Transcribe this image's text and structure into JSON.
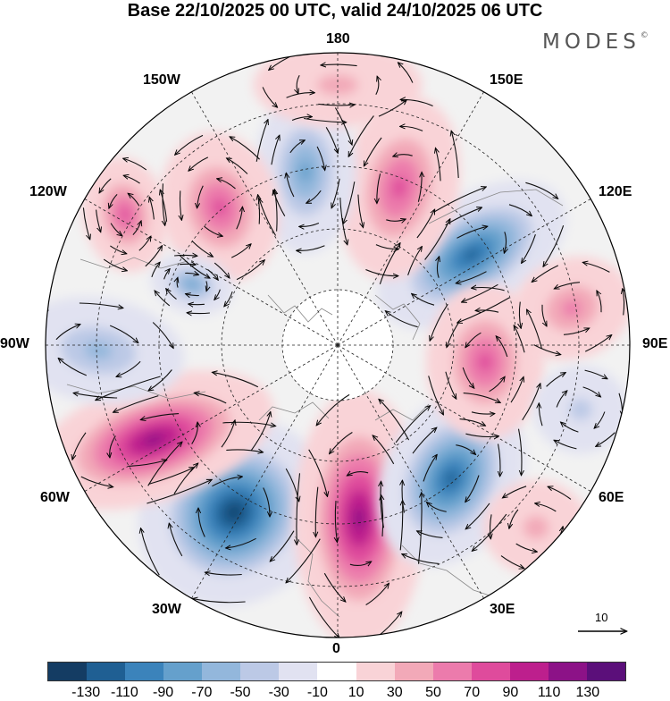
{
  "title": "Base 22/10/2025 00 UTC, valid 24/10/2025 06 UTC",
  "brand": "MODES",
  "brand_mark": "©",
  "longitude_labels": {
    "lon_180": "180",
    "lon_150e": "150E",
    "lon_120e": "120E",
    "lon_90e": "90E",
    "lon_60e": "60E",
    "lon_30e": "30E",
    "lon_0": "0",
    "lon_30w": "30W",
    "lon_60w": "60W",
    "lon_90w": "90W",
    "lon_120w": "120W",
    "lon_150w": "150W"
  },
  "vector_scale": {
    "label": "10"
  },
  "colorbar": {
    "labels": [
      "-130",
      "-110",
      "-90",
      "-70",
      "-50",
      "-30",
      "-10",
      "10",
      "30",
      "50",
      "70",
      "90",
      "110",
      "130"
    ],
    "colors": [
      "#143c63",
      "#1f5f93",
      "#3b83bb",
      "#65a0cc",
      "#93b7dc",
      "#bcc9e6",
      "#e1e2f1",
      "#ffffff",
      "#f9d3d7",
      "#f2a9b8",
      "#ec7bac",
      "#df4b9c",
      "#bd1f8d",
      "#8c1287",
      "#5b0f7a"
    ]
  },
  "anomalies": [
    {
      "sign": "negative",
      "value": -130
    },
    {
      "sign": "positive",
      "value": 110
    },
    {
      "sign": "positive",
      "value": 110
    },
    {
      "sign": "negative",
      "value": -110
    },
    {
      "sign": "negative",
      "value": -110
    },
    {
      "sign": "positive",
      "value": 70
    },
    {
      "sign": "negative",
      "value": -70
    },
    {
      "sign": "positive",
      "value": 70
    },
    {
      "sign": "positive",
      "value": 70
    },
    {
      "sign": "negative",
      "value": -50
    },
    {
      "sign": "positive",
      "value": 50
    },
    {
      "sign": "negative",
      "value": -70
    },
    {
      "sign": "positive",
      "value": 70
    },
    {
      "sign": "negative",
      "value": -30
    },
    {
      "sign": "positive",
      "value": 30
    },
    {
      "sign": "positive",
      "value": 30
    }
  ]
}
